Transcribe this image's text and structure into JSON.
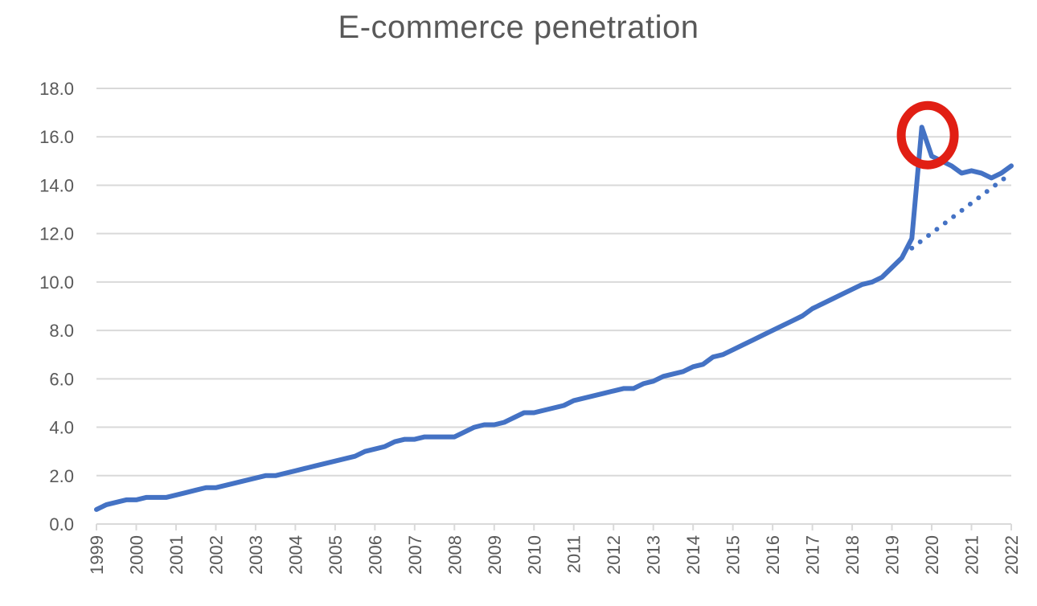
{
  "chart_data": {
    "type": "line",
    "title": "E-commerce penetration",
    "xlabel": "",
    "ylabel": "",
    "xlim": [
      1999,
      2022
    ],
    "ylim": [
      0,
      18
    ],
    "y_ticks": [
      "0.0",
      "2.0",
      "4.0",
      "6.0",
      "8.0",
      "10.0",
      "12.0",
      "14.0",
      "16.0",
      "18.0"
    ],
    "x_ticks": [
      "1999",
      "2000",
      "2001",
      "2002",
      "2003",
      "2004",
      "2005",
      "2006",
      "2007",
      "2008",
      "2009",
      "2010",
      "2011",
      "2012",
      "2013",
      "2014",
      "2015",
      "2016",
      "2017",
      "2018",
      "2019",
      "2020",
      "2021",
      "2022"
    ],
    "grid": true,
    "legend": "none",
    "series": [
      {
        "color": "#4472C4",
        "style": "solid",
        "points": [
          [
            1999.0,
            0.6
          ],
          [
            1999.25,
            0.8
          ],
          [
            1999.5,
            0.9
          ],
          [
            1999.75,
            1.0
          ],
          [
            2000.0,
            1.0
          ],
          [
            2000.25,
            1.1
          ],
          [
            2000.5,
            1.1
          ],
          [
            2000.75,
            1.1
          ],
          [
            2001.0,
            1.2
          ],
          [
            2001.25,
            1.3
          ],
          [
            2001.5,
            1.4
          ],
          [
            2001.75,
            1.5
          ],
          [
            2002.0,
            1.5
          ],
          [
            2002.25,
            1.6
          ],
          [
            2002.5,
            1.7
          ],
          [
            2002.75,
            1.8
          ],
          [
            2003.0,
            1.9
          ],
          [
            2003.25,
            2.0
          ],
          [
            2003.5,
            2.0
          ],
          [
            2003.75,
            2.1
          ],
          [
            2004.0,
            2.2
          ],
          [
            2004.25,
            2.3
          ],
          [
            2004.5,
            2.4
          ],
          [
            2004.75,
            2.5
          ],
          [
            2005.0,
            2.6
          ],
          [
            2005.25,
            2.7
          ],
          [
            2005.5,
            2.8
          ],
          [
            2005.75,
            3.0
          ],
          [
            2006.0,
            3.1
          ],
          [
            2006.25,
            3.2
          ],
          [
            2006.5,
            3.4
          ],
          [
            2006.75,
            3.5
          ],
          [
            2007.0,
            3.5
          ],
          [
            2007.25,
            3.6
          ],
          [
            2007.5,
            3.6
          ],
          [
            2007.75,
            3.6
          ],
          [
            2008.0,
            3.6
          ],
          [
            2008.25,
            3.8
          ],
          [
            2008.5,
            4.0
          ],
          [
            2008.75,
            4.1
          ],
          [
            2009.0,
            4.1
          ],
          [
            2009.25,
            4.2
          ],
          [
            2009.5,
            4.4
          ],
          [
            2009.75,
            4.6
          ],
          [
            2010.0,
            4.6
          ],
          [
            2010.25,
            4.7
          ],
          [
            2010.5,
            4.8
          ],
          [
            2010.75,
            4.9
          ],
          [
            2011.0,
            5.1
          ],
          [
            2011.25,
            5.2
          ],
          [
            2011.5,
            5.3
          ],
          [
            2011.75,
            5.4
          ],
          [
            2012.0,
            5.5
          ],
          [
            2012.25,
            5.6
          ],
          [
            2012.5,
            5.6
          ],
          [
            2012.75,
            5.8
          ],
          [
            2013.0,
            5.9
          ],
          [
            2013.25,
            6.1
          ],
          [
            2013.5,
            6.2
          ],
          [
            2013.75,
            6.3
          ],
          [
            2014.0,
            6.5
          ],
          [
            2014.25,
            6.6
          ],
          [
            2014.5,
            6.9
          ],
          [
            2014.75,
            7.0
          ],
          [
            2015.0,
            7.2
          ],
          [
            2015.25,
            7.4
          ],
          [
            2015.5,
            7.6
          ],
          [
            2015.75,
            7.8
          ],
          [
            2016.0,
            8.0
          ],
          [
            2016.25,
            8.2
          ],
          [
            2016.5,
            8.4
          ],
          [
            2016.75,
            8.6
          ],
          [
            2017.0,
            8.9
          ],
          [
            2017.25,
            9.1
          ],
          [
            2017.5,
            9.3
          ],
          [
            2017.75,
            9.5
          ],
          [
            2018.0,
            9.7
          ],
          [
            2018.25,
            9.9
          ],
          [
            2018.5,
            10.0
          ],
          [
            2018.75,
            10.2
          ],
          [
            2019.0,
            10.6
          ],
          [
            2019.25,
            11.0
          ],
          [
            2019.5,
            11.8
          ],
          [
            2019.75,
            16.4
          ],
          [
            2020.0,
            15.2
          ],
          [
            2020.25,
            15.0
          ],
          [
            2020.5,
            14.8
          ],
          [
            2020.75,
            14.5
          ],
          [
            2021.0,
            14.6
          ],
          [
            2021.25,
            14.5
          ],
          [
            2021.5,
            14.3
          ],
          [
            2021.75,
            14.5
          ],
          [
            2022.0,
            14.8
          ]
        ]
      },
      {
        "color": "#4472C4",
        "style": "dotted",
        "points": [
          [
            2019.5,
            11.4
          ],
          [
            2022.0,
            14.5
          ]
        ]
      }
    ],
    "annotations": [
      {
        "shape": "ellipse",
        "color": "#E11F14",
        "x": 2019.9,
        "y": 16.2
      }
    ]
  }
}
